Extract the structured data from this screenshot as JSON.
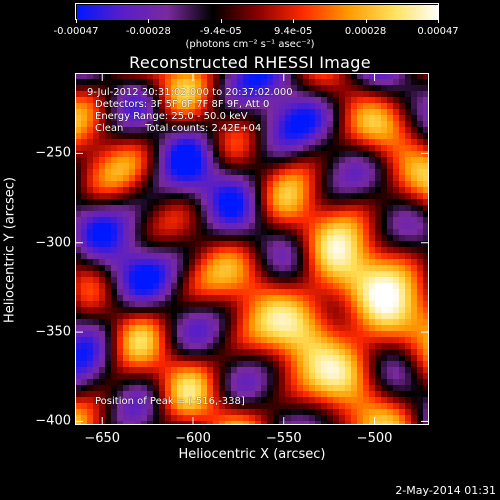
{
  "colorbar": {
    "ticks": [
      "-0.00047",
      "-0.00028",
      "-9.4e-05",
      "9.4e-05",
      "0.00028",
      "0.00047"
    ],
    "unit_label": "(photons cm⁻² s⁻¹ asec⁻²)",
    "colors": [
      "#0018ff",
      "#5a1ec8",
      "#7a2a9e",
      "#000000",
      "#8a0000",
      "#ff2a00",
      "#ff9a00",
      "#ffe15a",
      "#ffffff"
    ]
  },
  "chart_data": {
    "type": "heatmap",
    "title": "Reconstructed RHESSI Image",
    "xlabel": "Heliocentric X (arcsec)",
    "ylabel": "Heliocentric Y (arcsec)",
    "xlim": [
      -665,
      -470
    ],
    "ylim": [
      -402,
      -205
    ],
    "xticks": [
      -650,
      -600,
      -550,
      -500
    ],
    "yticks": [
      -250,
      -300,
      -350,
      -400
    ],
    "vmin": -0.00047,
    "vmax": 0.00047,
    "peak": {
      "x": -516,
      "y": -338
    },
    "annotations": {
      "time_range": "9-Jul-2012 20:31:02.000 to 20:37:02.000",
      "detectors": "Detectors: 3F 5F 6F 7F 8F 9F, Att 0",
      "energy_range": "Energy Range: 25.0 - 50.0 keV",
      "method": "Clean",
      "total_counts": "Total counts: 2.42E+04",
      "peak_text": "Position of Peak = [-516,-338]"
    }
  },
  "footer": {
    "date": "2-May-2014 01:31"
  }
}
